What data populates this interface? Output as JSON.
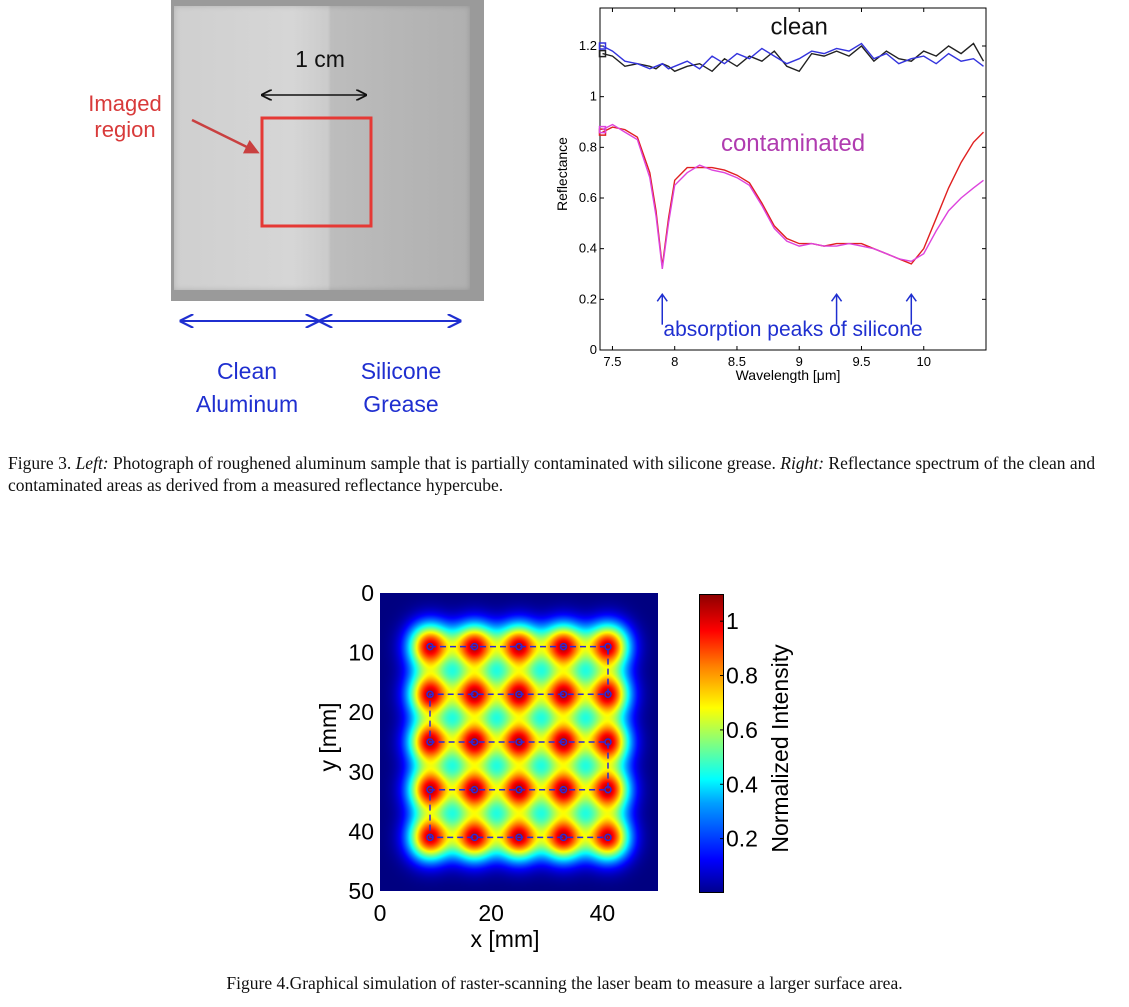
{
  "figure3": {
    "photo": {
      "scale_label": "1 cm",
      "imaged_region_label_line1": "Imaged",
      "imaged_region_label_line2": "region",
      "left_region_line1": "Clean",
      "left_region_line2": "Aluminum",
      "right_region_line1": "Silicone",
      "right_region_line2": "Grease",
      "colors": {
        "box": "#e53935",
        "arrows": "#1f2fd0",
        "annotation": "#d83a3a"
      }
    },
    "chart_data": {
      "type": "line",
      "xlabel": "Wavelength [μm]",
      "ylabel": "Reflectance",
      "xlim": [
        7.4,
        10.5
      ],
      "ylim": [
        0,
        1.35
      ],
      "x_ticks": [
        "7.5",
        "8",
        "8.5",
        "9",
        "9.5",
        "10"
      ],
      "y_ticks": [
        "0",
        "0.2",
        "0.4",
        "0.6",
        "0.8",
        "1",
        "1.2"
      ],
      "annotations": {
        "clean": "clean",
        "contaminated": "contaminated",
        "peaks": "absorption peaks of silicone"
      },
      "peak_wavelengths": [
        7.9,
        9.3,
        9.9
      ],
      "x": [
        7.42,
        7.5,
        7.6,
        7.7,
        7.8,
        7.85,
        7.9,
        7.95,
        8.0,
        8.1,
        8.2,
        8.3,
        8.4,
        8.5,
        8.6,
        8.7,
        8.8,
        8.9,
        9.0,
        9.1,
        9.2,
        9.3,
        9.4,
        9.5,
        9.6,
        9.7,
        9.8,
        9.9,
        10.0,
        10.1,
        10.2,
        10.3,
        10.4,
        10.48
      ],
      "series": [
        {
          "values": [
            1.17,
            1.16,
            1.12,
            1.13,
            1.12,
            1.11,
            1.13,
            1.12,
            1.1,
            1.12,
            1.13,
            1.1,
            1.15,
            1.12,
            1.16,
            1.14,
            1.18,
            1.12,
            1.1,
            1.17,
            1.16,
            1.18,
            1.16,
            1.2,
            1.14,
            1.18,
            1.15,
            1.14,
            1.18,
            1.16,
            1.2,
            1.17,
            1.21,
            1.14
          ]
        },
        {
          "values": [
            1.2,
            1.18,
            1.14,
            1.13,
            1.11,
            1.12,
            1.13,
            1.11,
            1.12,
            1.14,
            1.11,
            1.16,
            1.13,
            1.17,
            1.15,
            1.19,
            1.16,
            1.13,
            1.15,
            1.18,
            1.17,
            1.19,
            1.18,
            1.21,
            1.15,
            1.17,
            1.13,
            1.15,
            1.16,
            1.13,
            1.17,
            1.14,
            1.15,
            1.12
          ]
        },
        {
          "values": [
            0.86,
            0.88,
            0.87,
            0.84,
            0.7,
            0.55,
            0.33,
            0.52,
            0.67,
            0.72,
            0.72,
            0.72,
            0.71,
            0.69,
            0.66,
            0.58,
            0.49,
            0.44,
            0.42,
            0.42,
            0.41,
            0.42,
            0.42,
            0.42,
            0.4,
            0.38,
            0.36,
            0.34,
            0.4,
            0.52,
            0.64,
            0.74,
            0.82,
            0.86
          ]
        },
        {
          "values": [
            0.87,
            0.89,
            0.86,
            0.83,
            0.68,
            0.53,
            0.32,
            0.5,
            0.65,
            0.7,
            0.73,
            0.71,
            0.7,
            0.68,
            0.65,
            0.57,
            0.48,
            0.43,
            0.41,
            0.42,
            0.41,
            0.41,
            0.42,
            0.41,
            0.4,
            0.38,
            0.36,
            0.35,
            0.38,
            0.47,
            0.55,
            0.6,
            0.64,
            0.67
          ]
        }
      ],
      "colors": [
        "#222222",
        "#3333dd",
        "#e02020",
        "#dd44dd"
      ]
    },
    "caption": {
      "label": "Figure 3. ",
      "left_word": "Left:",
      "left_text": " Photograph of roughened aluminum sample that is partially contaminated with silicone grease. ",
      "right_word": "Right:",
      "right_text": " Reflectance spectrum of the clean and contaminated areas as derived from a measured reflectance hypercube."
    }
  },
  "figure4": {
    "chart_data": {
      "type": "heatmap",
      "xlabel": "x [mm]",
      "ylabel": "y [mm]",
      "xlim": [
        0,
        50
      ],
      "ylim": [
        0,
        50
      ],
      "x_ticks": [
        "0",
        "20",
        "40"
      ],
      "y_ticks": [
        "0",
        "10",
        "20",
        "30",
        "40",
        "50"
      ],
      "colorbar_label": "Normalized Intensity",
      "colorbar_ticks": [
        "0.2",
        "0.4",
        "0.6",
        "0.8",
        "1"
      ],
      "colorbar_range": [
        0,
        1.1
      ],
      "raster_x": [
        9,
        17,
        25,
        33,
        41
      ],
      "raster_y": [
        9,
        17,
        25,
        33,
        41
      ],
      "path_color": "#2a2ad8"
    },
    "caption": "Figure 4.Graphical simulation of raster-scanning the laser beam to measure a larger surface area."
  }
}
